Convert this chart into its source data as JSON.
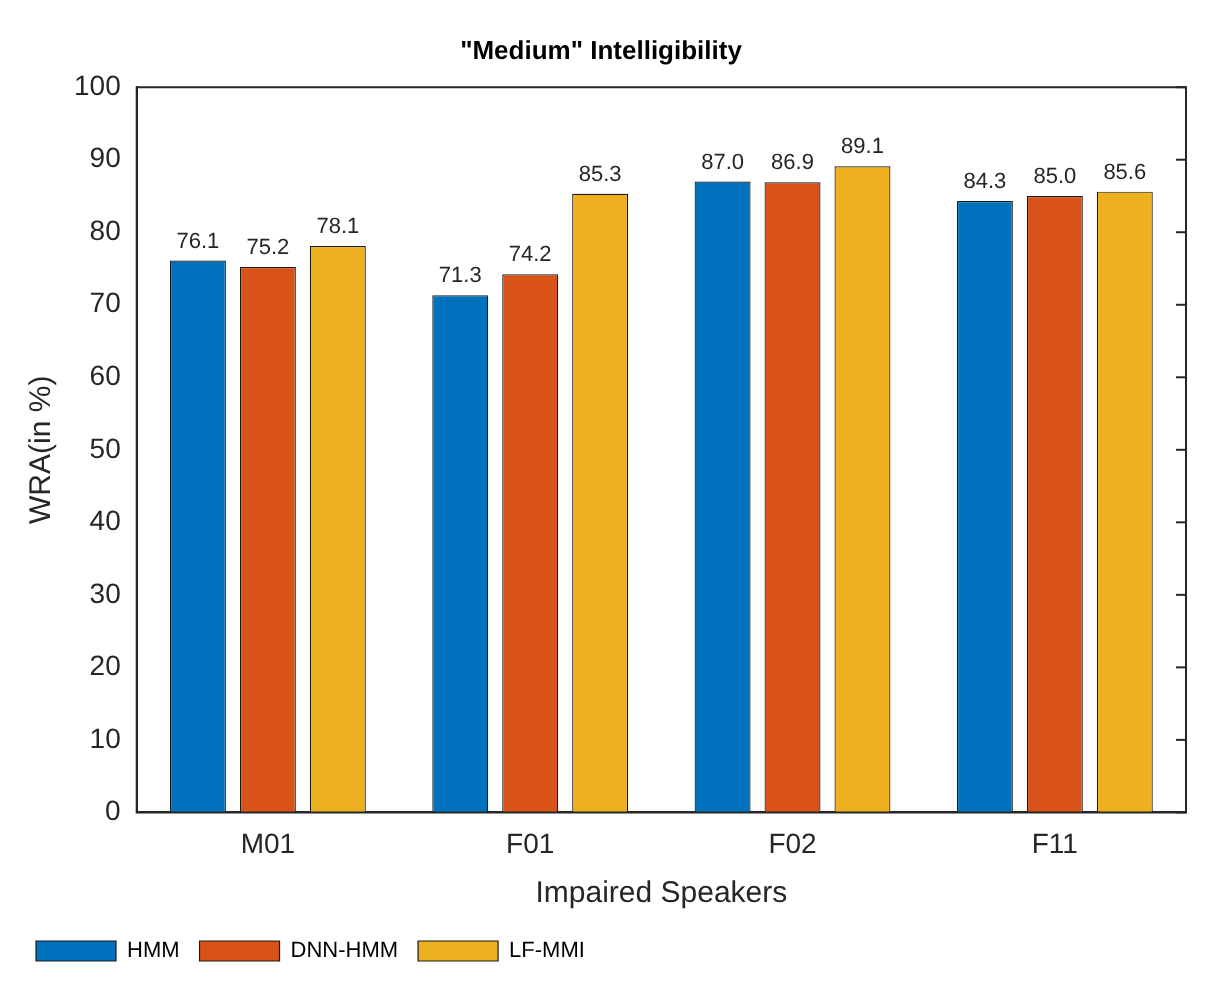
{
  "chart_data": {
    "type": "bar",
    "title": "\"Medium\" Intelligibility",
    "xlabel": "Impaired Speakers",
    "ylabel": "WRA(in %)",
    "categories": [
      "M01",
      "F01",
      "F02",
      "F11"
    ],
    "series": [
      {
        "name": "HMM",
        "color": "#0072bd",
        "values": [
          76.1,
          71.3,
          87.0,
          84.3
        ],
        "value_labels": [
          "76.1",
          "71.3",
          "87.0",
          "84.3"
        ]
      },
      {
        "name": "DNN-HMM",
        "color": "#d95319",
        "values": [
          75.2,
          74.2,
          86.9,
          85.0
        ],
        "value_labels": [
          "75.2",
          "74.2",
          "86.9",
          "85.0"
        ]
      },
      {
        "name": "LF-MMI",
        "color": "#edb120",
        "values": [
          78.1,
          85.3,
          89.1,
          85.6
        ],
        "value_labels": [
          "78.1",
          "85.3",
          "89.1",
          "85.6"
        ]
      }
    ],
    "ylim": [
      0,
      100
    ],
    "yticks": [
      0,
      10,
      20,
      30,
      40,
      50,
      60,
      70,
      80,
      90,
      100
    ],
    "grid": false,
    "legend": "bottom left"
  }
}
